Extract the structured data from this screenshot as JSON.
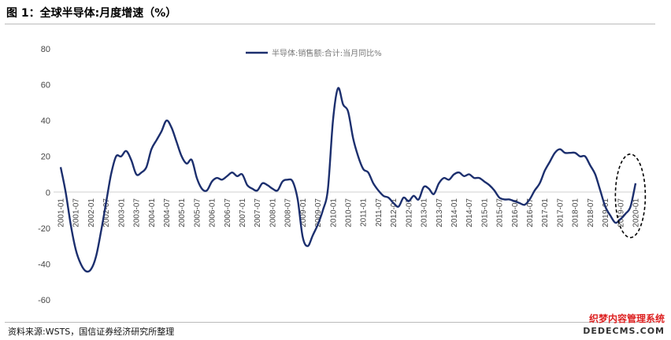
{
  "header": {
    "title": "图 1：全球半导体:月度增速（%）"
  },
  "footer": {
    "source": "资料来源:WSTS，国信证券经济研究所整理"
  },
  "watermark": {
    "line1": "织梦内容管理系统",
    "line2": "DEDECMS.COM"
  },
  "colors": {
    "series": "#1c2f6e",
    "annotation": "#000000"
  },
  "chart_data": {
    "type": "line",
    "title": "",
    "xlabel": "",
    "ylabel": "",
    "ylim": [
      -60,
      80
    ],
    "yticks": [
      80,
      60,
      40,
      20,
      0,
      -20,
      -40,
      -60
    ],
    "xtick_labels": [
      "2001-01",
      "2001-07",
      "2002-01",
      "2002-07",
      "2003-01",
      "2003-07",
      "2004-01",
      "2004-07",
      "2005-01",
      "2005-07",
      "2006-01",
      "2006-07",
      "2007-01",
      "2007-07",
      "2008-01",
      "2008-07",
      "2009-01",
      "2009-07",
      "2010-01",
      "2010-07",
      "2011-01",
      "2011-07",
      "2012-01",
      "2012-07",
      "2013-01",
      "2013-07",
      "2014-01",
      "2014-07",
      "2015-01",
      "2015-07",
      "2016-01",
      "2016-07",
      "2017-01",
      "2017-07",
      "2018-01",
      "2018-07",
      "2019-01",
      "2019-07",
      "2020-01"
    ],
    "legend": {
      "position": "top-center"
    },
    "annotation": "dashed ellipse highlighting 2019-07 to 2020-01",
    "series": [
      {
        "name": "半导体:销售额:合计:当月同比%",
        "points": [
          [
            "2001-01",
            14
          ],
          [
            "2001-03",
            0
          ],
          [
            "2001-05",
            -18
          ],
          [
            "2001-07",
            -32
          ],
          [
            "2001-09",
            -40
          ],
          [
            "2001-11",
            -44
          ],
          [
            "2002-01",
            -43
          ],
          [
            "2002-03",
            -36
          ],
          [
            "2002-05",
            -22
          ],
          [
            "2002-07",
            -6
          ],
          [
            "2002-09",
            10
          ],
          [
            "2002-11",
            20
          ],
          [
            "2003-01",
            20
          ],
          [
            "2003-03",
            23
          ],
          [
            "2003-05",
            18
          ],
          [
            "2003-07",
            10
          ],
          [
            "2003-09",
            11
          ],
          [
            "2003-11",
            14
          ],
          [
            "2004-01",
            24
          ],
          [
            "2004-03",
            29
          ],
          [
            "2004-05",
            34
          ],
          [
            "2004-07",
            40
          ],
          [
            "2004-09",
            36
          ],
          [
            "2004-11",
            28
          ],
          [
            "2005-01",
            20
          ],
          [
            "2005-03",
            16
          ],
          [
            "2005-05",
            18
          ],
          [
            "2005-07",
            8
          ],
          [
            "2005-09",
            2
          ],
          [
            "2005-11",
            1
          ],
          [
            "2006-01",
            6
          ],
          [
            "2006-03",
            8
          ],
          [
            "2006-05",
            7
          ],
          [
            "2006-07",
            9
          ],
          [
            "2006-09",
            11
          ],
          [
            "2006-11",
            9
          ],
          [
            "2007-01",
            10
          ],
          [
            "2007-03",
            4
          ],
          [
            "2007-05",
            2
          ],
          [
            "2007-07",
            1
          ],
          [
            "2007-09",
            5
          ],
          [
            "2007-11",
            4
          ],
          [
            "2008-01",
            2
          ],
          [
            "2008-03",
            1
          ],
          [
            "2008-05",
            6
          ],
          [
            "2008-07",
            7
          ],
          [
            "2008-09",
            6
          ],
          [
            "2008-11",
            -4
          ],
          [
            "2009-01",
            -25
          ],
          [
            "2009-03",
            -30
          ],
          [
            "2009-05",
            -24
          ],
          [
            "2009-07",
            -18
          ],
          [
            "2009-09",
            -10
          ],
          [
            "2009-11",
            2
          ],
          [
            "2010-01",
            40
          ],
          [
            "2010-03",
            58
          ],
          [
            "2010-05",
            49
          ],
          [
            "2010-07",
            45
          ],
          [
            "2010-09",
            30
          ],
          [
            "2010-11",
            20
          ],
          [
            "2011-01",
            13
          ],
          [
            "2011-03",
            11
          ],
          [
            "2011-05",
            5
          ],
          [
            "2011-07",
            1
          ],
          [
            "2011-09",
            -2
          ],
          [
            "2011-11",
            -3
          ],
          [
            "2012-01",
            -6
          ],
          [
            "2012-03",
            -8
          ],
          [
            "2012-05",
            -3
          ],
          [
            "2012-07",
            -5
          ],
          [
            "2012-09",
            -2
          ],
          [
            "2012-11",
            -4
          ],
          [
            "2013-01",
            3
          ],
          [
            "2013-03",
            2
          ],
          [
            "2013-05",
            -1
          ],
          [
            "2013-07",
            5
          ],
          [
            "2013-09",
            8
          ],
          [
            "2013-11",
            7
          ],
          [
            "2014-01",
            10
          ],
          [
            "2014-03",
            11
          ],
          [
            "2014-05",
            9
          ],
          [
            "2014-07",
            10
          ],
          [
            "2014-09",
            8
          ],
          [
            "2014-11",
            8
          ],
          [
            "2015-01",
            6
          ],
          [
            "2015-03",
            4
          ],
          [
            "2015-05",
            1
          ],
          [
            "2015-07",
            -3
          ],
          [
            "2015-09",
            -4
          ],
          [
            "2015-11",
            -4
          ],
          [
            "2016-01",
            -5
          ],
          [
            "2016-03",
            -6
          ],
          [
            "2016-05",
            -7
          ],
          [
            "2016-07",
            -4
          ],
          [
            "2016-09",
            1
          ],
          [
            "2016-11",
            5
          ],
          [
            "2017-01",
            12
          ],
          [
            "2017-03",
            17
          ],
          [
            "2017-05",
            22
          ],
          [
            "2017-07",
            24
          ],
          [
            "2017-09",
            22
          ],
          [
            "2017-11",
            22
          ],
          [
            "2018-01",
            22
          ],
          [
            "2018-03",
            20
          ],
          [
            "2018-05",
            20
          ],
          [
            "2018-07",
            15
          ],
          [
            "2018-09",
            10
          ],
          [
            "2018-11",
            1
          ],
          [
            "2019-01",
            -8
          ],
          [
            "2019-03",
            -13
          ],
          [
            "2019-05",
            -17
          ],
          [
            "2019-07",
            -15
          ],
          [
            "2019-09",
            -12
          ],
          [
            "2019-11",
            -8
          ],
          [
            "2020-01",
            5
          ]
        ]
      }
    ]
  }
}
